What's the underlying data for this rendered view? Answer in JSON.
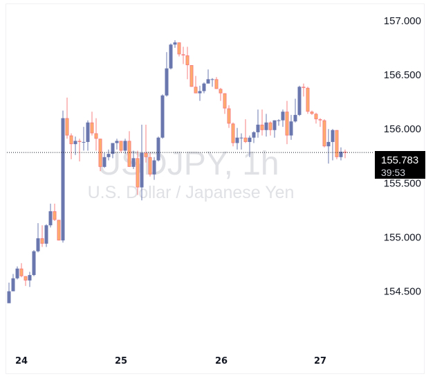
{
  "chart": {
    "symbol": "USDJPY, 1h",
    "description": "U.S. Dollar / Japanese Yen",
    "last_price": "155.783",
    "countdown": "39:53",
    "colors": {
      "up": "#6a77ae",
      "down_body": "#fdae6b",
      "down_border": "#f77f7f",
      "price_tag_bg": "#000000"
    }
  },
  "chart_data": {
    "type": "candlestick",
    "title": "USDJPY, 1h",
    "subtitle": "U.S. Dollar / Japanese Yen",
    "xlabel": "",
    "ylabel": "",
    "y_ticks": [
      "157.000",
      "156.500",
      "156.000",
      "155.500",
      "155.000",
      "154.500"
    ],
    "x_ticks": [
      "24",
      "25",
      "26",
      "27"
    ],
    "ylim": [
      154.2,
      157.15
    ],
    "grid": false,
    "last_price": 155.783,
    "candles": [
      [
        154.39,
        154.5,
        154.58,
        154.39
      ],
      [
        154.5,
        154.62,
        154.66,
        154.5
      ],
      [
        154.62,
        154.71,
        154.73,
        154.61
      ],
      [
        154.71,
        154.64,
        154.76,
        154.63
      ],
      [
        154.64,
        154.6,
        154.64,
        154.55
      ],
      [
        154.6,
        154.65,
        154.68,
        154.54
      ],
      [
        154.65,
        154.87,
        154.88,
        154.64
      ],
      [
        154.87,
        154.99,
        155.13,
        154.86
      ],
      [
        154.99,
        154.94,
        155.11,
        154.91
      ],
      [
        154.94,
        155.11,
        155.12,
        154.91
      ],
      [
        155.11,
        155.24,
        155.31,
        155.09
      ],
      [
        155.24,
        155.16,
        155.31,
        155.15
      ],
      [
        155.16,
        154.97,
        155.16,
        154.97
      ],
      [
        154.97,
        156.1,
        156.17,
        154.95
      ],
      [
        156.1,
        155.94,
        156.29,
        155.91
      ],
      [
        155.94,
        155.86,
        155.96,
        155.72
      ],
      [
        155.86,
        155.89,
        155.93,
        155.76
      ],
      [
        155.89,
        155.88,
        155.91,
        155.7
      ],
      [
        155.88,
        155.88,
        156.02,
        155.8
      ],
      [
        155.88,
        156.06,
        156.08,
        155.8
      ],
      [
        156.06,
        155.96,
        156.16,
        155.94
      ],
      [
        155.96,
        155.91,
        156.1,
        155.8
      ],
      [
        155.91,
        155.65,
        155.91,
        155.61
      ],
      [
        155.65,
        155.74,
        155.78,
        155.64
      ],
      [
        155.74,
        155.77,
        155.81,
        155.71
      ],
      [
        155.77,
        155.87,
        155.87,
        155.73
      ],
      [
        155.87,
        155.89,
        155.91,
        155.81
      ],
      [
        155.89,
        155.8,
        155.89,
        155.78
      ],
      [
        155.8,
        155.89,
        155.91,
        155.77
      ],
      [
        155.89,
        155.65,
        155.98,
        155.65
      ],
      [
        155.65,
        155.73,
        155.8,
        155.63
      ],
      [
        155.73,
        155.46,
        155.8,
        155.39
      ],
      [
        155.46,
        155.78,
        156.04,
        155.34
      ],
      [
        155.78,
        155.74,
        156.04,
        155.69
      ],
      [
        155.74,
        155.58,
        155.78,
        155.56
      ],
      [
        155.58,
        155.71,
        155.74,
        155.53
      ],
      [
        155.71,
        155.92,
        155.93,
        155.7
      ],
      [
        155.92,
        156.31,
        156.32,
        155.91
      ],
      [
        156.31,
        156.56,
        156.71,
        156.3
      ],
      [
        156.56,
        156.78,
        156.79,
        156.55
      ],
      [
        156.78,
        156.8,
        156.82,
        156.75
      ],
      [
        156.8,
        156.69,
        156.8,
        156.67
      ],
      [
        156.69,
        156.68,
        156.76,
        156.6
      ],
      [
        156.68,
        156.59,
        156.76,
        156.46
      ],
      [
        156.59,
        156.39,
        156.59,
        156.39
      ],
      [
        156.39,
        156.33,
        156.49,
        156.33
      ],
      [
        156.33,
        156.35,
        156.4,
        156.26
      ],
      [
        156.35,
        156.42,
        156.43,
        156.33
      ],
      [
        156.42,
        156.46,
        156.55,
        156.42
      ],
      [
        156.46,
        156.46,
        156.47,
        156.39
      ],
      [
        156.46,
        156.37,
        156.48,
        156.37
      ],
      [
        156.37,
        156.33,
        156.38,
        156.26
      ],
      [
        156.33,
        156.19,
        156.33,
        156.14
      ],
      [
        156.19,
        156.05,
        156.22,
        156.01
      ],
      [
        156.05,
        155.87,
        156.06,
        155.84
      ],
      [
        155.87,
        155.92,
        156.01,
        155.81
      ],
      [
        155.92,
        155.92,
        155.96,
        155.81
      ],
      [
        155.92,
        155.88,
        156.09,
        155.87
      ],
      [
        155.88,
        155.92,
        155.94,
        155.74
      ],
      [
        155.92,
        155.97,
        155.98,
        155.87
      ],
      [
        155.97,
        156.04,
        156.18,
        155.92
      ],
      [
        156.04,
        155.99,
        156.18,
        155.94
      ],
      [
        155.99,
        156.06,
        156.14,
        155.93
      ],
      [
        156.06,
        155.99,
        156.07,
        155.94
      ],
      [
        155.99,
        156.08,
        156.08,
        155.92
      ],
      [
        156.08,
        156.08,
        156.09,
        156.03
      ],
      [
        156.08,
        156.16,
        156.18,
        156.02
      ],
      [
        156.16,
        155.94,
        156.26,
        155.86
      ],
      [
        155.94,
        156.07,
        156.13,
        155.9
      ],
      [
        156.07,
        156.13,
        156.28,
        156.06
      ],
      [
        156.13,
        156.39,
        156.4,
        156.12
      ],
      [
        156.39,
        156.38,
        156.42,
        156.3
      ],
      [
        156.38,
        156.16,
        156.39,
        156.14
      ],
      [
        156.16,
        156.14,
        156.17,
        156.13
      ],
      [
        156.14,
        156.09,
        156.15,
        156.05
      ],
      [
        156.09,
        156.08,
        156.1,
        156.02
      ],
      [
        156.08,
        155.84,
        156.09,
        155.83
      ],
      [
        155.84,
        155.88,
        156.0,
        155.68
      ],
      [
        155.88,
        155.99,
        156.0,
        155.71
      ],
      [
        155.99,
        155.74,
        155.99,
        155.72
      ],
      [
        155.74,
        155.79,
        155.83,
        155.71
      ],
      [
        155.79,
        155.783,
        155.81,
        155.73
      ]
    ]
  }
}
